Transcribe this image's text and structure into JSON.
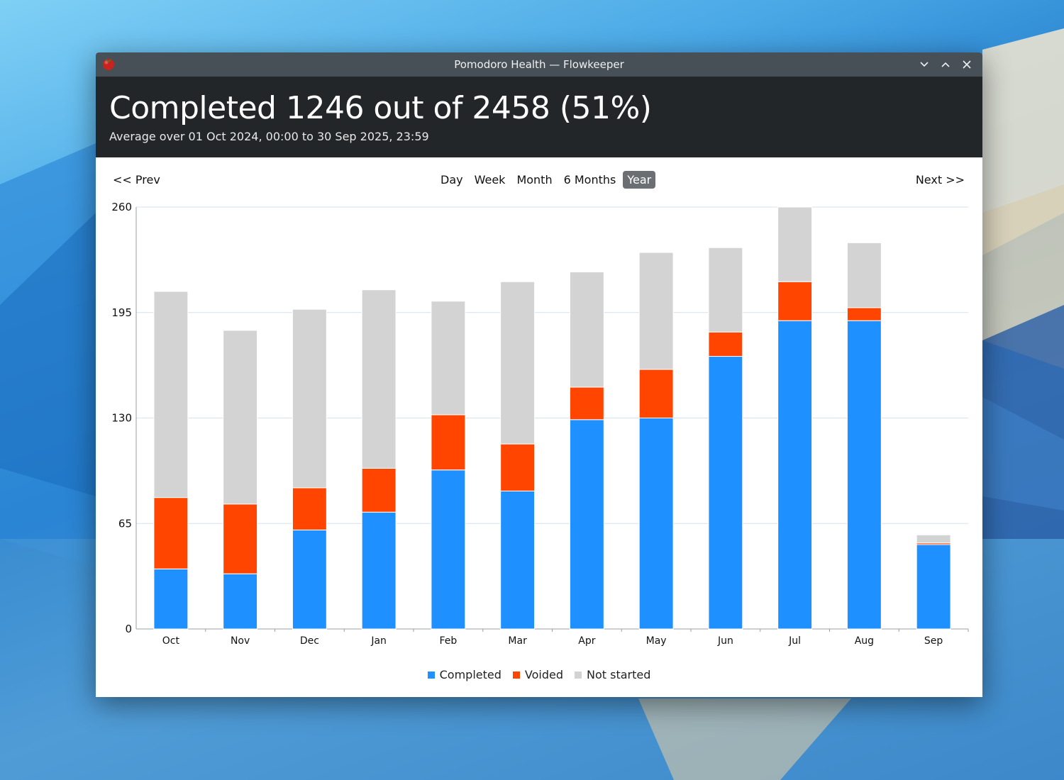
{
  "window": {
    "title": "Pomodoro Health — Flowkeeper",
    "controls": [
      "minimize-icon",
      "maximize-icon",
      "close-icon"
    ]
  },
  "header": {
    "title": "Completed 1246 out of 2458 (51%)",
    "subtitle": "Average over 01 Oct 2024, 00:00 to 30 Sep 2025, 23:59"
  },
  "nav": {
    "prev": "<< Prev",
    "next": "Next >>",
    "periods": [
      "Day",
      "Week",
      "Month",
      "6 Months",
      "Year"
    ],
    "active_period": "Year"
  },
  "colors": {
    "completed": "#1e90ff",
    "voided": "#ff4500",
    "not_started": "#d3d3d3",
    "header_bg": "#232629",
    "titlebar_bg": "#475057"
  },
  "chart_data": {
    "type": "bar",
    "stacked": true,
    "categories": [
      "Oct",
      "Nov",
      "Dec",
      "Jan",
      "Feb",
      "Mar",
      "Apr",
      "May",
      "Jun",
      "Jul",
      "Aug",
      "Sep"
    ],
    "series": [
      {
        "name": "Completed",
        "color": "#1e90ff",
        "values": [
          37,
          34,
          61,
          72,
          98,
          85,
          129,
          130,
          168,
          190,
          190,
          52
        ]
      },
      {
        "name": "Voided",
        "color": "#ff4500",
        "values": [
          44,
          43,
          26,
          27,
          34,
          29,
          20,
          30,
          15,
          24,
          8,
          1
        ]
      },
      {
        "name": "Not started",
        "color": "#d3d3d3",
        "values": [
          127,
          107,
          110,
          110,
          70,
          100,
          71,
          72,
          52,
          46,
          40,
          5
        ]
      }
    ],
    "yticks": [
      0,
      65,
      130,
      195,
      260
    ],
    "ylim": [
      0,
      260
    ],
    "grid": true,
    "legend_position": "bottom",
    "title": "",
    "xlabel": "",
    "ylabel": ""
  }
}
